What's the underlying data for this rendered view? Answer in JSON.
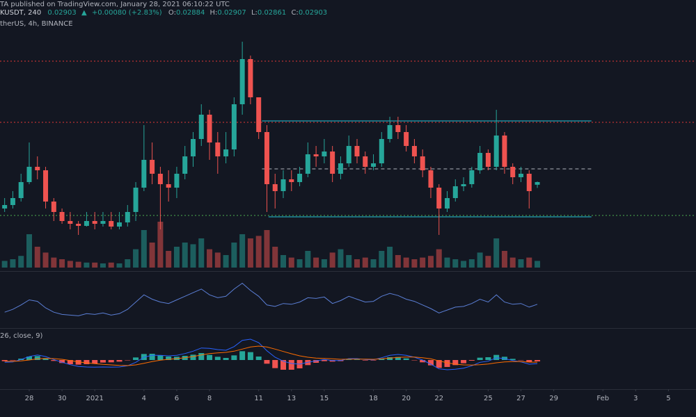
{
  "header": {
    "published": "TA published on TradingView.com, January 28, 2021 06:10:22 UTC",
    "symbol": "KUSDT, 240",
    "arrow": "▲",
    "change": "+0.00080 (+2.83%)",
    "ohlc_labels": [
      "O:",
      "H:",
      "L:",
      "C:"
    ],
    "source": "therUS, 4h, BINANCE"
  },
  "chart_data": {
    "type": "candlestick",
    "up_color": "#26a69a",
    "down_color": "#ef5350",
    "xlim": [
      -1.783,
      40.68
    ],
    "ylim": [
      0.02263,
      0.04213
    ],
    "xticks": [
      {
        "value": 0,
        "label": "28"
      },
      {
        "value": 2,
        "label": "30"
      },
      {
        "value": 4,
        "label": "2021"
      },
      {
        "value": 7,
        "label": "4"
      },
      {
        "value": 9,
        "label": "6"
      },
      {
        "value": 11,
        "label": "8"
      },
      {
        "value": 14,
        "label": "11"
      },
      {
        "value": 16,
        "label": "13"
      },
      {
        "value": 18,
        "label": "15"
      },
      {
        "value": 21,
        "label": "18"
      },
      {
        "value": 23,
        "label": "20"
      },
      {
        "value": 25,
        "label": "22"
      },
      {
        "value": 28,
        "label": "25"
      },
      {
        "value": 30,
        "label": "27"
      },
      {
        "value": 32,
        "label": "29"
      },
      {
        "value": 35,
        "label": "Feb"
      },
      {
        "value": 37,
        "label": "3"
      },
      {
        "value": 39,
        "label": "5"
      }
    ],
    "x": [
      -1.5,
      -1,
      -0.5,
      0,
      0.5,
      1,
      1.5,
      2,
      2.5,
      3,
      3.5,
      4,
      4.5,
      5,
      5.5,
      6,
      6.5,
      7,
      7.5,
      8,
      8.5,
      9,
      9.5,
      10,
      10.5,
      11,
      11.5,
      12,
      12.5,
      13,
      13.5,
      14,
      14.5,
      15,
      15.5,
      16,
      16.5,
      17,
      17.5,
      18,
      18.5,
      19,
      19.5,
      20,
      20.5,
      21,
      21.5,
      22,
      22.5,
      23,
      23.5,
      24,
      24.5,
      25,
      25.5,
      26,
      26.5,
      27,
      27.5,
      28,
      28.5,
      29,
      29.5,
      30,
      30.5,
      31
    ],
    "candles": [
      [
        0.02713,
        0.02788,
        0.02688,
        0.02738
      ],
      [
        0.02738,
        0.02838,
        0.02713,
        0.02788
      ],
      [
        0.02788,
        0.02963,
        0.02763,
        0.02903
      ],
      [
        0.02903,
        0.03188,
        0.02888,
        0.03013
      ],
      [
        0.03013,
        0.03088,
        0.02923,
        0.02988
      ],
      [
        0.02988,
        0.03013,
        0.02713,
        0.02763
      ],
      [
        0.02763,
        0.02788,
        0.02623,
        0.02688
      ],
      [
        0.02688,
        0.02713,
        0.02603,
        0.02623
      ],
      [
        0.02623,
        0.02688,
        0.02563,
        0.02603
      ],
      [
        0.02603,
        0.02623,
        0.02523,
        0.02588
      ],
      [
        0.02588,
        0.02688,
        0.02583,
        0.02623
      ],
      [
        0.02623,
        0.02688,
        0.02563,
        0.02603
      ],
      [
        0.02603,
        0.02688,
        0.02583,
        0.02623
      ],
      [
        0.02623,
        0.02688,
        0.02563,
        0.02583
      ],
      [
        0.02583,
        0.02688,
        0.02563,
        0.02613
      ],
      [
        0.02613,
        0.02738,
        0.02583,
        0.02688
      ],
      [
        0.02688,
        0.02903,
        0.02623,
        0.02863
      ],
      [
        0.02863,
        0.03313,
        0.02838,
        0.03063
      ],
      [
        0.03063,
        0.03188,
        0.02888,
        0.02963
      ],
      [
        0.02963,
        0.03013,
        0.02563,
        0.02888
      ],
      [
        0.02888,
        0.02988,
        0.02763,
        0.02863
      ],
      [
        0.02863,
        0.03013,
        0.02788,
        0.02963
      ],
      [
        0.02963,
        0.03163,
        0.02923,
        0.03088
      ],
      [
        0.03088,
        0.03263,
        0.03013,
        0.03213
      ],
      [
        0.03213,
        0.03463,
        0.03163,
        0.03388
      ],
      [
        0.03388,
        0.03423,
        0.03063,
        0.03188
      ],
      [
        0.03188,
        0.03263,
        0.02963,
        0.03088
      ],
      [
        0.03088,
        0.03263,
        0.03038,
        0.03138
      ],
      [
        0.03138,
        0.03513,
        0.03088,
        0.03463
      ],
      [
        0.03463,
        0.03913,
        0.03388,
        0.03788
      ],
      [
        0.03788,
        0.03813,
        0.03463,
        0.03513
      ],
      [
        0.03513,
        0.03513,
        0.03213,
        0.03263
      ],
      [
        0.03263,
        0.03313,
        0.02688,
        0.02888
      ],
      [
        0.02888,
        0.02963,
        0.02713,
        0.02838
      ],
      [
        0.02838,
        0.02988,
        0.02788,
        0.02923
      ],
      [
        0.02923,
        0.02988,
        0.02838,
        0.02903
      ],
      [
        0.02903,
        0.03013,
        0.02873,
        0.02963
      ],
      [
        0.02963,
        0.03188,
        0.02938,
        0.03103
      ],
      [
        0.03103,
        0.03163,
        0.03013,
        0.03088
      ],
      [
        0.03088,
        0.03213,
        0.03038,
        0.03123
      ],
      [
        0.03123,
        0.03163,
        0.02903,
        0.02963
      ],
      [
        0.02963,
        0.03088,
        0.02923,
        0.03038
      ],
      [
        0.03038,
        0.03238,
        0.03013,
        0.03163
      ],
      [
        0.03163,
        0.03213,
        0.03038,
        0.03088
      ],
      [
        0.03088,
        0.03123,
        0.02963,
        0.03013
      ],
      [
        0.03013,
        0.03103,
        0.02988,
        0.03038
      ],
      [
        0.03038,
        0.03263,
        0.03013,
        0.03213
      ],
      [
        0.03213,
        0.03373,
        0.03188,
        0.03313
      ],
      [
        0.03313,
        0.03373,
        0.03213,
        0.03263
      ],
      [
        0.03263,
        0.03313,
        0.03123,
        0.03163
      ],
      [
        0.03163,
        0.03213,
        0.03038,
        0.03088
      ],
      [
        0.03088,
        0.03138,
        0.02938,
        0.02988
      ],
      [
        0.02988,
        0.03013,
        0.02788,
        0.02863
      ],
      [
        0.02863,
        0.02888,
        0.02523,
        0.02713
      ],
      [
        0.02713,
        0.02838,
        0.02688,
        0.02788
      ],
      [
        0.02788,
        0.02923,
        0.02763,
        0.02873
      ],
      [
        0.02873,
        0.02938,
        0.02838,
        0.02888
      ],
      [
        0.02888,
        0.03013,
        0.02863,
        0.02988
      ],
      [
        0.02988,
        0.03163,
        0.02963,
        0.03113
      ],
      [
        0.03113,
        0.03138,
        0.02988,
        0.03013
      ],
      [
        0.03013,
        0.03423,
        0.02988,
        0.03238
      ],
      [
        0.03238,
        0.03263,
        0.02963,
        0.03013
      ],
      [
        0.03013,
        0.03038,
        0.02888,
        0.02938
      ],
      [
        0.02938,
        0.03013,
        0.02903,
        0.02963
      ],
      [
        0.02963,
        0.02988,
        0.02713,
        0.02838
      ],
      [
        0.02884,
        0.02907,
        0.02861,
        0.02903
      ]
    ],
    "volume": {
      "ylim": [
        0,
        100
      ],
      "values": [
        8,
        10,
        14,
        40,
        25,
        18,
        12,
        10,
        8,
        7,
        6,
        6,
        5,
        6,
        5,
        10,
        22,
        45,
        30,
        55,
        20,
        25,
        30,
        28,
        35,
        22,
        18,
        15,
        30,
        40,
        35,
        38,
        45,
        25,
        15,
        12,
        10,
        20,
        12,
        10,
        18,
        22,
        15,
        10,
        12,
        10,
        20,
        25,
        15,
        12,
        10,
        12,
        14,
        22,
        12,
        10,
        8,
        10,
        18,
        14,
        35,
        20,
        12,
        10,
        12,
        8
      ]
    },
    "levels": [
      {
        "value": 0.03773,
        "color": "#e53935",
        "style": "dotted",
        "start": -1.783,
        "end": 40.68
      },
      {
        "value": 0.03333,
        "color": "#e53935",
        "style": "dotted",
        "start": -1.783,
        "end": 40.68
      },
      {
        "value": 0.02663,
        "color": "#4caf50",
        "style": "dotted",
        "start": -1.783,
        "end": 40.68
      },
      {
        "value": 0.03343,
        "color": "#26c6da",
        "style": "solid",
        "start": 14.2,
        "end": 34.3
      },
      {
        "value": 0.02998,
        "color": "#b2b5be",
        "style": "dashed",
        "start": 14.2,
        "end": 34.3
      },
      {
        "value": 0.02653,
        "color": "#26c6da",
        "style": "solid",
        "start": 14.6,
        "end": 34.3
      }
    ],
    "rsi": {
      "color": "#5b7fd6",
      "ylim": [
        20,
        90
      ],
      "values": [
        38,
        42,
        48,
        55,
        53,
        44,
        38,
        35,
        34,
        33,
        36,
        35,
        37,
        34,
        36,
        42,
        52,
        62,
        56,
        52,
        50,
        55,
        60,
        65,
        70,
        62,
        58,
        60,
        70,
        78,
        68,
        60,
        48,
        46,
        50,
        49,
        52,
        58,
        57,
        59,
        50,
        54,
        60,
        56,
        52,
        53,
        60,
        64,
        61,
        56,
        53,
        48,
        43,
        37,
        41,
        45,
        46,
        50,
        56,
        52,
        62,
        52,
        49,
        50,
        45,
        49
      ]
    },
    "macd": {
      "title": "26, close, 9)",
      "ylim": [
        -0.0012,
        0.0012
      ],
      "macd": {
        "color": "#2962ff",
        "values": [
          -0.0001,
          -8e-05,
          2e-05,
          0.00015,
          0.00022,
          0.00015,
          2e-05,
          -0.0001,
          -0.0002,
          -0.00028,
          -0.0003,
          -0.00031,
          -0.0003,
          -0.00031,
          -0.0003,
          -0.00025,
          -0.0001,
          0.00012,
          0.0002,
          0.0002,
          0.00018,
          0.0002,
          0.00028,
          0.00038,
          0.00052,
          0.0005,
          0.00045,
          0.00042,
          0.00058,
          0.00085,
          0.0009,
          0.00075,
          0.0004,
          0.00012,
          -5e-05,
          -0.00015,
          -0.00018,
          -0.0001,
          -4e-05,
          2e-05,
          -2e-05,
          -2e-05,
          6e-05,
          6e-05,
          2e-05,
          1e-05,
          0.0001,
          0.0002,
          0.00024,
          0.0002,
          0.00012,
          0,
          -0.00018,
          -0.00038,
          -0.00042,
          -0.0004,
          -0.00035,
          -0.00025,
          -0.0001,
          -5e-05,
          0.0001,
          6e-05,
          -2e-05,
          -8e-05,
          -0.00018,
          -0.00016
        ]
      },
      "signal": {
        "color": "#ff6d00",
        "values": [
          -5e-05,
          -6e-05,
          -4e-05,
          0,
          5e-05,
          7e-05,
          6e-05,
          3e-05,
          -2e-05,
          -8e-05,
          -0.00012,
          -0.00016,
          -0.00019,
          -0.00021,
          -0.00023,
          -0.00024,
          -0.00021,
          -0.00014,
          -7e-05,
          -1e-05,
          3e-05,
          6e-05,
          0.0001,
          0.00015,
          0.00022,
          0.00028,
          0.00031,
          0.00033,
          0.00038,
          0.00047,
          0.00056,
          0.0006,
          0.00056,
          0.00047,
          0.00037,
          0.00027,
          0.00018,
          0.00012,
          8e-05,
          7e-05,
          5e-05,
          3e-05,
          4e-05,
          4e-05,
          4e-05,
          3e-05,
          5e-05,
          8e-05,
          0.00011,
          0.00013,
          0.00013,
          0.0001,
          5e-05,
          -4e-05,
          -0.00012,
          -0.00018,
          -0.00021,
          -0.00022,
          -0.0002,
          -0.00017,
          -0.00012,
          -8e-05,
          -7e-05,
          -7e-05,
          -9e-05,
          -0.0001
        ]
      },
      "histogram": {
        "positive_color": "#26a69a",
        "negative_color": "#ef5350",
        "values": [
          -5e-05,
          -2e-05,
          6e-05,
          0.00015,
          0.00017,
          8e-05,
          -4e-05,
          -0.00013,
          -0.00018,
          -0.0002,
          -0.00018,
          -0.00015,
          -0.00011,
          -0.0001,
          -7e-05,
          -1e-05,
          0.00011,
          0.00026,
          0.00027,
          0.00021,
          0.00015,
          0.00014,
          0.00018,
          0.00023,
          0.0003,
          0.00022,
          0.00014,
          9e-05,
          0.0002,
          0.00038,
          0.00034,
          0.00015,
          -0.00016,
          -0.00035,
          -0.00042,
          -0.00042,
          -0.00036,
          -0.00022,
          -0.00012,
          -5e-05,
          -7e-05,
          -5e-05,
          2e-05,
          2e-05,
          -2e-05,
          -2e-05,
          5e-05,
          0.00012,
          0.00013,
          7e-05,
          -1e-05,
          -0.0001,
          -0.00023,
          -0.00034,
          -0.0003,
          -0.00022,
          -0.00014,
          -3e-05,
          0.0001,
          0.00012,
          0.00022,
          0.00014,
          5e-05,
          -1e-05,
          -9e-05,
          -6e-05
        ]
      }
    }
  }
}
